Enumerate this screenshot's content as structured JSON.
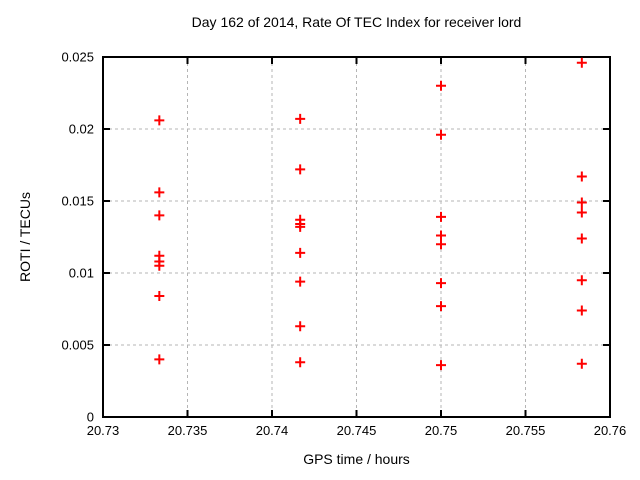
{
  "chart_data": {
    "type": "scatter",
    "title": "Day 162 of 2014, Rate Of TEC Index for receiver lord",
    "xlabel": "GPS time / hours",
    "ylabel": "ROTI / TECUs",
    "xlim": [
      20.73,
      20.76
    ],
    "ylim": [
      0,
      0.025
    ],
    "xticks": [
      {
        "value": 20.73,
        "label": "20.73"
      },
      {
        "value": 20.735,
        "label": "20.735"
      },
      {
        "value": 20.74,
        "label": "20.74"
      },
      {
        "value": 20.745,
        "label": "20.745"
      },
      {
        "value": 20.75,
        "label": "20.75"
      },
      {
        "value": 20.755,
        "label": "20.755"
      },
      {
        "value": 20.76,
        "label": "20.76"
      }
    ],
    "yticks": [
      {
        "value": 0,
        "label": "0"
      },
      {
        "value": 0.005,
        "label": "0.005"
      },
      {
        "value": 0.01,
        "label": "0.01"
      },
      {
        "value": 0.015,
        "label": "0.015"
      },
      {
        "value": 0.02,
        "label": "0.02"
      },
      {
        "value": 0.025,
        "label": "0.025"
      }
    ],
    "grid": true,
    "legend": "none",
    "marker": {
      "shape": "plus",
      "color": "#ff0000",
      "size": 11
    },
    "colors": {
      "marker": "#ff0000",
      "grid": "#b5b5b5",
      "border": "#000000",
      "background": "#ffffff"
    },
    "points": [
      [
        20.733333,
        0.0206
      ],
      [
        20.733333,
        0.0156
      ],
      [
        20.733333,
        0.014
      ],
      [
        20.733333,
        0.0112
      ],
      [
        20.733333,
        0.0108
      ],
      [
        20.733333,
        0.0105
      ],
      [
        20.733333,
        0.0084
      ],
      [
        20.733333,
        0.004
      ],
      [
        20.741667,
        0.0207
      ],
      [
        20.741667,
        0.0172
      ],
      [
        20.741667,
        0.0137
      ],
      [
        20.741667,
        0.0134
      ],
      [
        20.741667,
        0.0132
      ],
      [
        20.741667,
        0.0114
      ],
      [
        20.741667,
        0.0094
      ],
      [
        20.741667,
        0.0063
      ],
      [
        20.741667,
        0.0038
      ],
      [
        20.75,
        0.023
      ],
      [
        20.75,
        0.0196
      ],
      [
        20.75,
        0.0139
      ],
      [
        20.75,
        0.0126
      ],
      [
        20.75,
        0.012
      ],
      [
        20.75,
        0.0093
      ],
      [
        20.75,
        0.0077
      ],
      [
        20.75,
        0.0036
      ],
      [
        20.758333,
        0.0246
      ],
      [
        20.758333,
        0.0167
      ],
      [
        20.758333,
        0.0149
      ],
      [
        20.758333,
        0.0142
      ],
      [
        20.758333,
        0.0124
      ],
      [
        20.758333,
        0.0095
      ],
      [
        20.758333,
        0.0074
      ],
      [
        20.758333,
        0.0037
      ]
    ]
  }
}
